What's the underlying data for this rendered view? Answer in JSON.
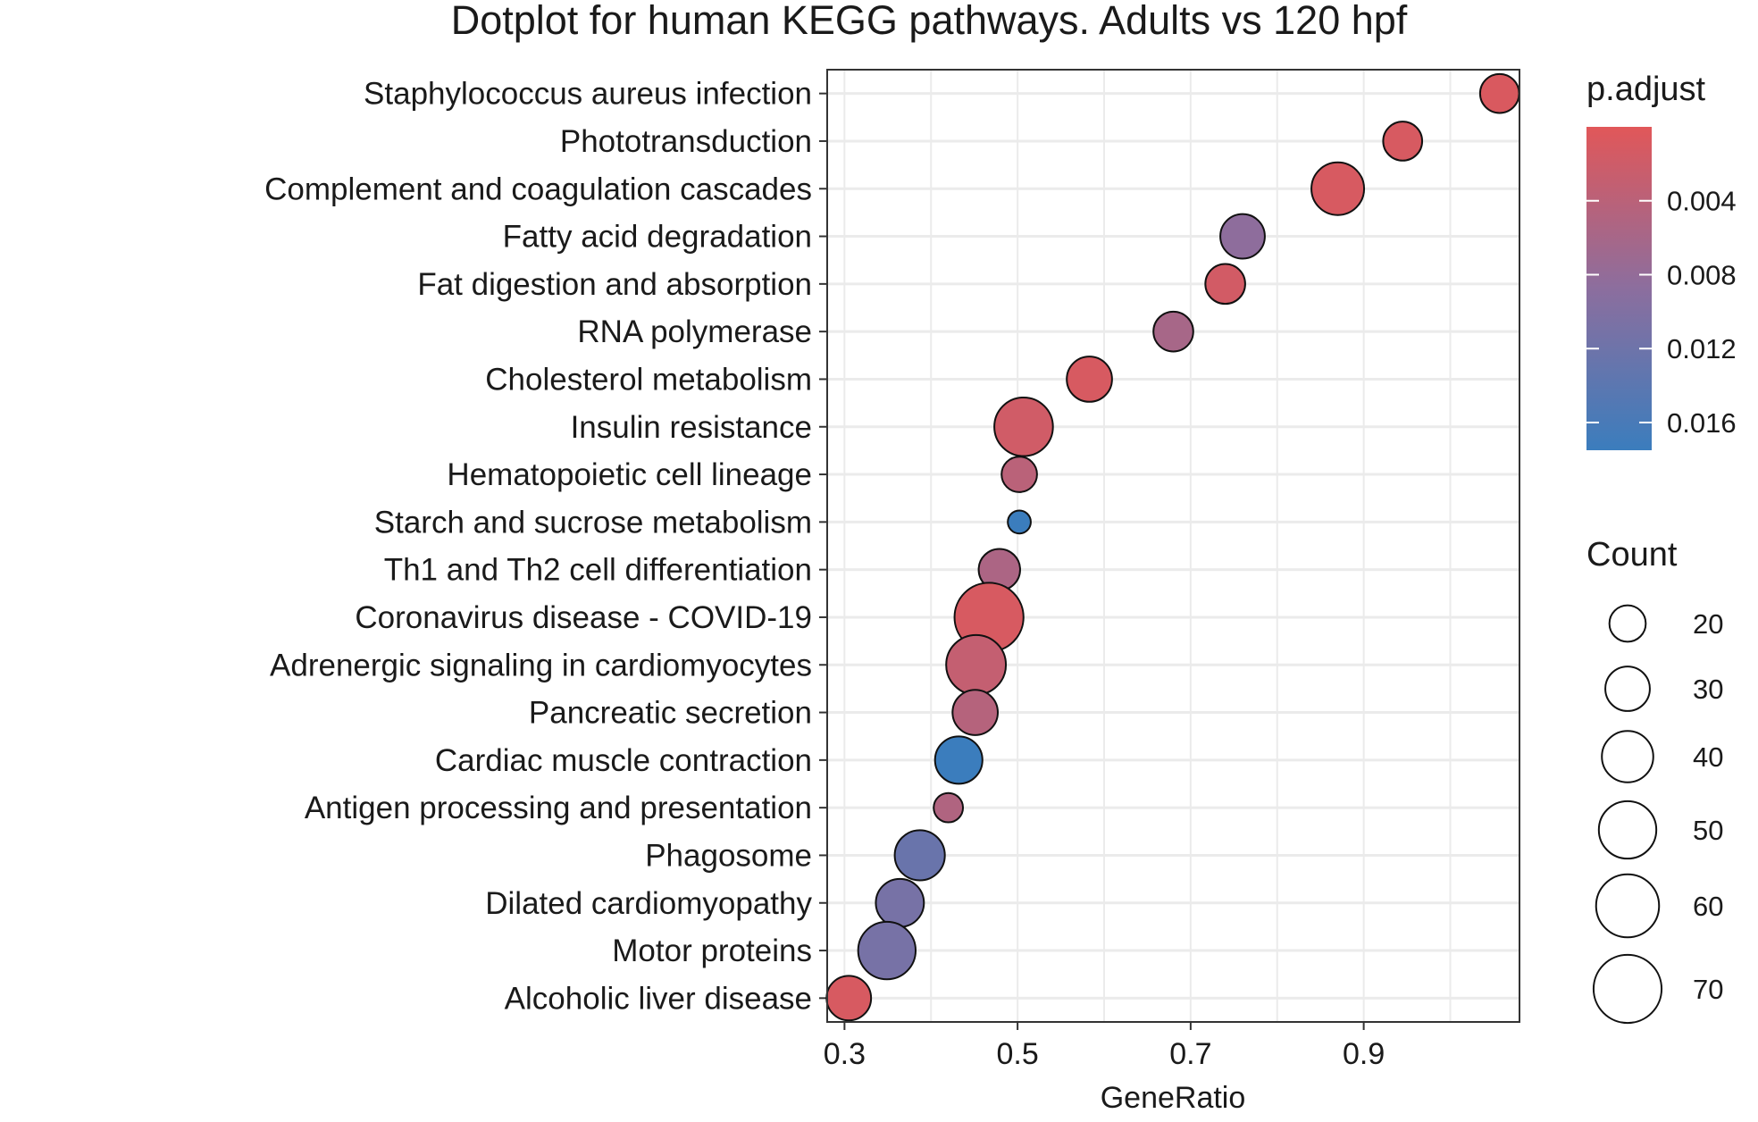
{
  "chart_data": {
    "type": "scatter",
    "title": "Dotplot for human KEGG pathways. Adults vs 120 hpf",
    "xlabel": "GeneRatio",
    "ylabel": "",
    "xlim": [
      0.28,
      1.08
    ],
    "xticks": [
      0.3,
      0.5,
      0.7,
      0.9
    ],
    "xtick_labels": [
      "0.3",
      "0.5",
      "0.7",
      "0.9"
    ],
    "grid": true,
    "categories": [
      "Staphylococcus aureus infection",
      "Phototransduction",
      "Complement and coagulation cascades",
      "Fatty acid degradation",
      "Fat digestion and absorption",
      "RNA polymerase",
      "Cholesterol metabolism",
      "Insulin resistance",
      "Hematopoietic cell lineage",
      "Starch and sucrose metabolism",
      "Th1 and Th2 cell differentiation",
      "Coronavirus disease - COVID-19",
      "Adrenergic signaling in cardiomyocytes",
      "Pancreatic secretion",
      "Cardiac muscle contraction",
      "Antigen processing and presentation",
      "Phagosome",
      "Dilated cardiomyopathy",
      "Motor proteins",
      "Alcoholic liver disease"
    ],
    "points": [
      {
        "y": "Staphylococcus aureus infection",
        "x": 1.057,
        "count": 23,
        "p_adjust": 0.0008
      },
      {
        "y": "Phototransduction",
        "x": 0.945,
        "count": 23,
        "p_adjust": 0.001
      },
      {
        "y": "Complement and coagulation cascades",
        "x": 0.87,
        "count": 42,
        "p_adjust": 0.001
      },
      {
        "y": "Fatty acid degradation",
        "x": 0.76,
        "count": 30,
        "p_adjust": 0.0085
      },
      {
        "y": "Fat digestion and absorption",
        "x": 0.74,
        "count": 24,
        "p_adjust": 0.0015
      },
      {
        "y": "RNA polymerase",
        "x": 0.68,
        "count": 24,
        "p_adjust": 0.006
      },
      {
        "y": "Cholesterol metabolism",
        "x": 0.583,
        "count": 31,
        "p_adjust": 0.001
      },
      {
        "y": "Insulin resistance",
        "x": 0.507,
        "count": 52,
        "p_adjust": 0.0018
      },
      {
        "y": "Hematopoietic cell lineage",
        "x": 0.502,
        "count": 19,
        "p_adjust": 0.004
      },
      {
        "y": "Starch and sucrose metabolism",
        "x": 0.502,
        "count": 8,
        "p_adjust": 0.0175
      },
      {
        "y": "Th1 and Th2 cell differentiation",
        "x": 0.479,
        "count": 26,
        "p_adjust": 0.0055
      },
      {
        "y": "Coronavirus disease - COVID-19",
        "x": 0.467,
        "count": 72,
        "p_adjust": 0.001
      },
      {
        "y": "Adrenergic signaling in cardiomyocytes",
        "x": 0.452,
        "count": 54,
        "p_adjust": 0.003
      },
      {
        "y": "Pancreatic secretion",
        "x": 0.451,
        "count": 31,
        "p_adjust": 0.0045
      },
      {
        "y": "Cardiac muscle contraction",
        "x": 0.432,
        "count": 34,
        "p_adjust": 0.0175
      },
      {
        "y": "Antigen processing and presentation",
        "x": 0.42,
        "count": 13,
        "p_adjust": 0.005
      },
      {
        "y": "Phagosome",
        "x": 0.387,
        "count": 38,
        "p_adjust": 0.0125
      },
      {
        "y": "Dilated cardiomyopathy",
        "x": 0.364,
        "count": 35,
        "p_adjust": 0.011
      },
      {
        "y": "Motor proteins",
        "x": 0.349,
        "count": 50,
        "p_adjust": 0.011
      },
      {
        "y": "Alcoholic liver disease",
        "x": 0.305,
        "count": 30,
        "p_adjust": 0.001
      }
    ],
    "color_legend": {
      "title": "p.adjust",
      "range": [
        0.0,
        0.0175
      ],
      "ticks": [
        0.004,
        0.008,
        0.012,
        0.016
      ],
      "tick_labels": [
        "0.004",
        "0.008",
        "0.012",
        "0.016"
      ],
      "low_color": "#e15759",
      "mid_color": "#8c6e9e",
      "high_color": "#3b7dbd"
    },
    "size_legend": {
      "title": "Count",
      "values": [
        20,
        30,
        40,
        50,
        60,
        70
      ],
      "labels": [
        "20",
        "30",
        "40",
        "50",
        "60",
        "70"
      ]
    }
  }
}
